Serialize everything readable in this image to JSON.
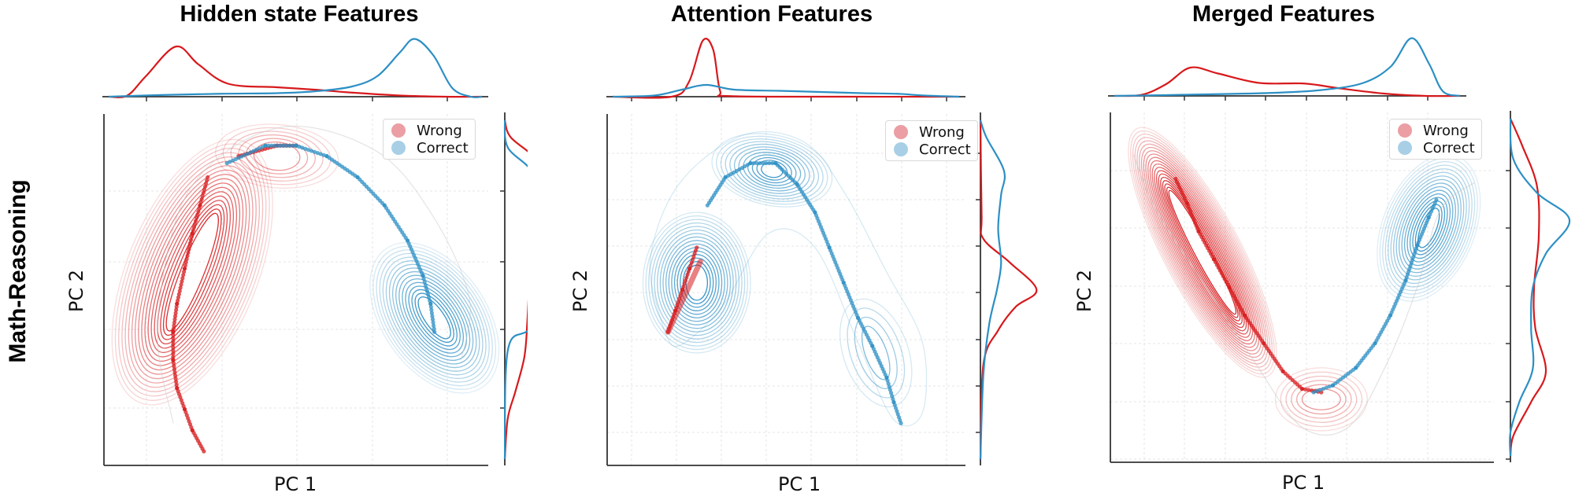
{
  "figure": {
    "row_label": "Math-Reasoning",
    "colors": {
      "wrong": "#d7191c",
      "correct": "#2c8fc4",
      "wrong_light": "#e8939a",
      "correct_light": "#9dc9e4",
      "grid": "#e6e6e6",
      "axis": "#333333"
    },
    "legend": {
      "wrong_label": "Wrong",
      "correct_label": "Correct"
    }
  },
  "panels": [
    {
      "title": "Hidden state Features",
      "xlabel": "PC 1",
      "ylabel": "PC 2"
    },
    {
      "title": "Attention Features",
      "xlabel": "PC 1",
      "ylabel": "PC 2"
    },
    {
      "title": "Merged Features",
      "xlabel": "PC 1",
      "ylabel": "PC 2"
    }
  ],
  "chart_data": [
    {
      "type": "scatter",
      "title": "Hidden state Features",
      "xlabel": "PC 1",
      "ylabel": "PC 2",
      "row": "Math-Reasoning",
      "grid": true,
      "legend_position": "upper right",
      "legend": [
        "Wrong",
        "Correct"
      ],
      "overlay": "kde contours + marginal kde",
      "series": [
        {
          "name": "Wrong",
          "color": "#d7191c",
          "points_norm": [
            [
              0.27,
              0.82
            ],
            [
              0.25,
              0.74
            ],
            [
              0.23,
              0.66
            ],
            [
              0.21,
              0.56
            ],
            [
              0.19,
              0.46
            ],
            [
              0.18,
              0.38
            ],
            [
              0.18,
              0.3
            ],
            [
              0.19,
              0.22
            ],
            [
              0.21,
              0.16
            ],
            [
              0.23,
              0.1
            ],
            [
              0.26,
              0.04
            ],
            [
              0.35,
              0.88
            ],
            [
              0.45,
              0.91
            ],
            [
              0.5,
              0.91
            ]
          ]
        },
        {
          "name": "Correct",
          "color": "#2c8fc4",
          "points_norm": [
            [
              0.32,
              0.86
            ],
            [
              0.42,
              0.91
            ],
            [
              0.5,
              0.91
            ],
            [
              0.58,
              0.88
            ],
            [
              0.66,
              0.82
            ],
            [
              0.73,
              0.74
            ],
            [
              0.79,
              0.64
            ],
            [
              0.83,
              0.54
            ],
            [
              0.85,
              0.46
            ],
            [
              0.86,
              0.38
            ]
          ]
        }
      ],
      "marginal_x": {
        "Wrong": {
          "peak_x_norm": 0.18,
          "shape": "sharp peak left, long right tail"
        },
        "Correct": {
          "peak_x_norm": 0.83,
          "shape": "small plateau left, sharp peak right"
        }
      },
      "marginal_y": {
        "Wrong": {
          "peak_y_norm": 0.8,
          "shape": "broad, upper-weighted"
        },
        "Correct": {
          "peak_y_norm": 0.42,
          "shape": "secondary mode top, main peak mid-lower"
        }
      }
    },
    {
      "type": "scatter",
      "title": "Attention Features",
      "xlabel": "PC 1",
      "ylabel": "PC 2",
      "row": "Math-Reasoning",
      "grid": true,
      "legend_position": "upper right",
      "legend": [
        "Wrong",
        "Correct"
      ],
      "overlay": "kde contours + marginal kde",
      "series": [
        {
          "name": "Wrong",
          "color": "#d7191c",
          "points_norm": [
            [
              0.17,
              0.38
            ],
            [
              0.19,
              0.44
            ],
            [
              0.21,
              0.5
            ],
            [
              0.23,
              0.56
            ],
            [
              0.25,
              0.62
            ],
            [
              0.16,
              0.35
            ]
          ]
        },
        {
          "name": "Correct",
          "color": "#2c8fc4",
          "points_norm": [
            [
              0.19,
              0.42
            ],
            [
              0.28,
              0.74
            ],
            [
              0.33,
              0.82
            ],
            [
              0.4,
              0.86
            ],
            [
              0.47,
              0.86
            ],
            [
              0.53,
              0.8
            ],
            [
              0.58,
              0.72
            ],
            [
              0.62,
              0.62
            ],
            [
              0.66,
              0.52
            ],
            [
              0.7,
              0.42
            ],
            [
              0.74,
              0.34
            ],
            [
              0.78,
              0.25
            ],
            [
              0.8,
              0.18
            ],
            [
              0.82,
              0.12
            ]
          ]
        }
      ],
      "marginal_x": {
        "Wrong": {
          "peak_x_norm": 0.22,
          "shape": "very sharp narrow peak"
        },
        "Correct": {
          "peak_x_norm": 0.25,
          "shape": "low broad bump, long flat tail to right"
        }
      },
      "marginal_y": {
        "Wrong": {
          "peak_y_norm": 0.55,
          "shape": "sharp peak mid"
        },
        "Correct": {
          "peak_y_norm": 0.83,
          "shape": "broad, upper mode"
        }
      }
    },
    {
      "type": "scatter",
      "title": "Merged Features",
      "xlabel": "PC 1",
      "ylabel": "PC 2",
      "row": "Math-Reasoning",
      "grid": true,
      "legend_position": "upper right",
      "legend": [
        "Wrong",
        "Correct"
      ],
      "overlay": "kde contours + marginal kde",
      "series": [
        {
          "name": "Wrong",
          "color": "#d7191c",
          "points_norm": [
            [
              0.17,
              0.81
            ],
            [
              0.2,
              0.74
            ],
            [
              0.23,
              0.66
            ],
            [
              0.27,
              0.58
            ],
            [
              0.31,
              0.5
            ],
            [
              0.35,
              0.42
            ],
            [
              0.4,
              0.34
            ],
            [
              0.45,
              0.26
            ],
            [
              0.5,
              0.21
            ],
            [
              0.55,
              0.2
            ]
          ]
        },
        {
          "name": "Correct",
          "color": "#2c8fc4",
          "points_norm": [
            [
              0.53,
              0.2
            ],
            [
              0.58,
              0.22
            ],
            [
              0.64,
              0.27
            ],
            [
              0.69,
              0.34
            ],
            [
              0.73,
              0.42
            ],
            [
              0.77,
              0.52
            ],
            [
              0.8,
              0.62
            ],
            [
              0.83,
              0.7
            ],
            [
              0.85,
              0.75
            ]
          ]
        }
      ],
      "marginal_x": {
        "Wrong": {
          "peak_x_norm": 0.22,
          "shape": "moderate peak left, broad shoulder mid"
        },
        "Correct": {
          "peak_x_norm": 0.86,
          "shape": "sharp peak right"
        }
      },
      "marginal_y": {
        "Wrong": {
          "peak_y_norm": 0.18,
          "shape": "bimodal: broad top + low peak"
        },
        "Correct": {
          "peak_y_norm": 0.72,
          "shape": "sharp upper peak, small low bump"
        }
      }
    }
  ]
}
